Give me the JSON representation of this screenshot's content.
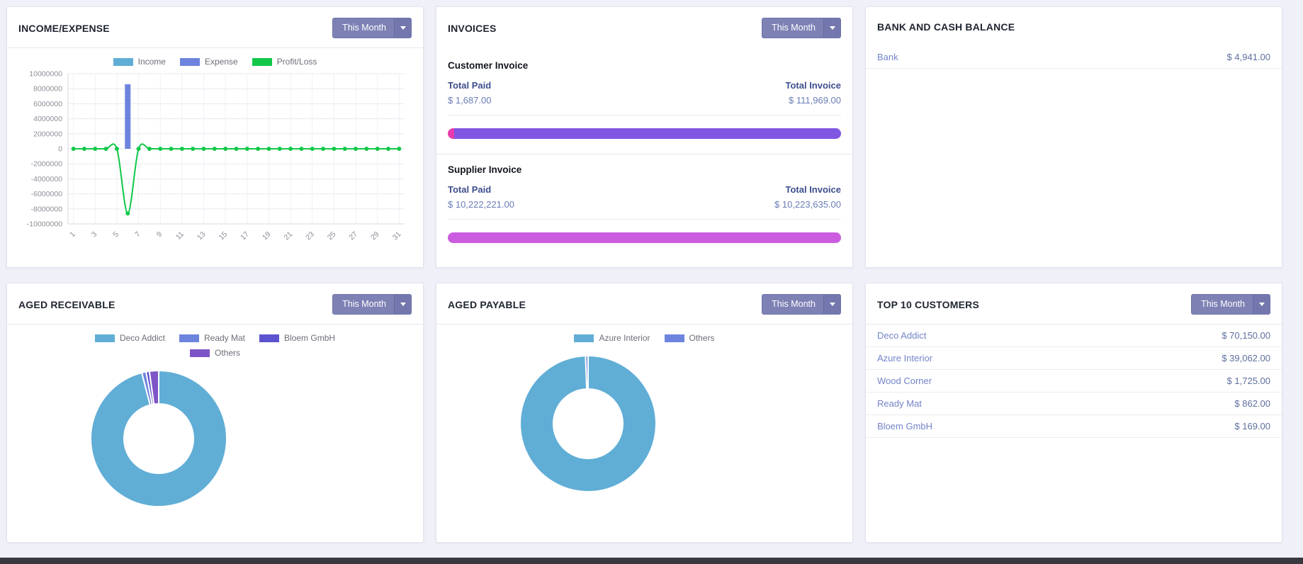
{
  "theme": {
    "background": "#eff0f8",
    "card_border": "#e3e4ec",
    "accent_button": "#7d81b4",
    "link_color": "#7384c8",
    "amount_color": "#5d6f9d",
    "bottom_bar": "#38383e"
  },
  "period_filter": {
    "label": "This Month"
  },
  "cards": {
    "income_expense": {
      "title": "INCOME/EXPENSE"
    },
    "invoices": {
      "title": "INVOICES",
      "customer": {
        "title": "Customer Invoice",
        "paid_label": "Total Paid",
        "total_label": "Total Invoice",
        "paid_value": "$ 1,687.00",
        "total_value": "$ 111,969.00",
        "progress": [
          {
            "color": "#e83cae",
            "pct": 1.6
          },
          {
            "color": "#8055e2",
            "pct": 98.4
          }
        ]
      },
      "supplier": {
        "title": "Supplier Invoice",
        "paid_label": "Total Paid",
        "total_label": "Total Invoice",
        "paid_value": "$ 10,222,221.00",
        "total_value": "$ 10,223,635.00",
        "progress": [
          {
            "color": "#cb5ce0",
            "pct": 100
          }
        ]
      }
    },
    "bank": {
      "title": "BANK AND CASH BALANCE",
      "rows": [
        {
          "label": "Bank",
          "value": "$ 4,941.00"
        }
      ]
    },
    "aged_receivable": {
      "title": "AGED RECEIVABLE"
    },
    "aged_payable": {
      "title": "AGED PAYABLE"
    },
    "top_customers": {
      "title": "TOP 10 CUSTOMERS",
      "rows": [
        {
          "name": "Deco Addict",
          "value": "$ 70,150.00"
        },
        {
          "name": "Azure Interior",
          "value": "$ 39,062.00"
        },
        {
          "name": "Wood Corner",
          "value": "$ 1,725.00"
        },
        {
          "name": "Ready Mat",
          "value": "$ 862.00"
        },
        {
          "name": "Bloem GmbH",
          "value": "$ 169.00"
        }
      ]
    }
  },
  "chart_data": [
    {
      "id": "income-expense",
      "type": "bar",
      "title": "Income/Expense by day of month",
      "x": [
        1,
        2,
        3,
        4,
        5,
        6,
        7,
        8,
        9,
        10,
        11,
        12,
        13,
        14,
        15,
        16,
        17,
        18,
        19,
        20,
        21,
        22,
        23,
        24,
        25,
        26,
        27,
        28,
        29,
        30,
        31
      ],
      "x_tick_labels": [
        "1",
        "3",
        "5",
        "7",
        "9",
        "11",
        "13",
        "15",
        "17",
        "19",
        "21",
        "23",
        "25",
        "27",
        "29",
        "31"
      ],
      "ylim": [
        -10000000,
        10000000
      ],
      "yticks": [
        10000000,
        8000000,
        6000000,
        4000000,
        2000000,
        0,
        -2000000,
        -4000000,
        -6000000,
        -8000000,
        -10000000
      ],
      "grid": true,
      "legend_position": "top",
      "series": [
        {
          "name": "Income",
          "type": "bar",
          "color": "#60aed6",
          "values": [
            0,
            0,
            0,
            0,
            0,
            0,
            0,
            0,
            0,
            0,
            0,
            0,
            0,
            0,
            0,
            0,
            0,
            0,
            0,
            0,
            0,
            0,
            0,
            0,
            0,
            0,
            0,
            0,
            0,
            0,
            0
          ]
        },
        {
          "name": "Expense",
          "type": "bar",
          "color": "#6d84de",
          "values": [
            0,
            0,
            0,
            0,
            0,
            8600000,
            0,
            0,
            0,
            0,
            0,
            0,
            0,
            0,
            0,
            0,
            0,
            0,
            0,
            0,
            0,
            0,
            0,
            0,
            0,
            0,
            0,
            0,
            0,
            0,
            0
          ]
        },
        {
          "name": "Profit/Loss",
          "type": "line",
          "color": "#12c84b",
          "values": [
            0,
            0,
            0,
            0,
            0,
            -8600000,
            0,
            0,
            0,
            0,
            0,
            0,
            0,
            0,
            0,
            0,
            0,
            0,
            0,
            0,
            0,
            0,
            0,
            0,
            0,
            0,
            0,
            0,
            0,
            0,
            0
          ]
        }
      ]
    },
    {
      "id": "aged-receivable",
      "type": "pie",
      "donut": true,
      "labels": [
        "Deco Addict",
        "Ready Mat",
        "Bloem GmbH",
        "Others"
      ],
      "values": [
        96,
        1,
        0.8,
        2.2
      ],
      "values_note": "estimated shares (%), no numeric labels shown",
      "colors": [
        "#60aed6",
        "#6d84de",
        "#5c53d0",
        "#7e55c7"
      ],
      "legend_position": "top"
    },
    {
      "id": "aged-payable",
      "type": "pie",
      "donut": true,
      "labels": [
        "Azure Interior",
        "Others"
      ],
      "values": [
        99.4,
        0.6
      ],
      "values_note": "estimated shares (%), no numeric labels shown",
      "colors": [
        "#60aed6",
        "#6d84de"
      ],
      "legend_position": "top"
    }
  ]
}
